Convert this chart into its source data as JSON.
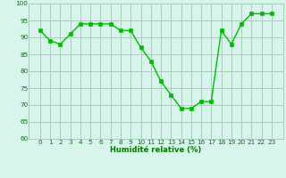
{
  "x": [
    0,
    1,
    2,
    3,
    4,
    5,
    6,
    7,
    8,
    9,
    10,
    11,
    12,
    13,
    14,
    15,
    16,
    17,
    18,
    19,
    20,
    21,
    22,
    23
  ],
  "y": [
    92,
    89,
    88,
    91,
    94,
    94,
    94,
    94,
    92,
    92,
    87,
    83,
    77,
    73,
    69,
    69,
    71,
    71,
    92,
    88,
    94,
    97,
    97,
    97
  ],
  "line_color": "#00bb00",
  "marker_color": "#00bb00",
  "bg_color": "#d8f5ec",
  "grid_color": "#aaccc0",
  "xlabel": "Humidité relative (%)",
  "ylim": [
    60,
    100
  ],
  "yticks": [
    60,
    65,
    70,
    75,
    80,
    85,
    90,
    95,
    100
  ],
  "xticks": [
    0,
    1,
    2,
    3,
    4,
    5,
    6,
    7,
    8,
    9,
    10,
    11,
    12,
    13,
    14,
    15,
    16,
    17,
    18,
    19,
    20,
    21,
    22,
    23
  ],
  "xlabel_color": "#007700",
  "tick_color": "#007700",
  "tick_fontsize": 5.2,
  "xlabel_fontsize": 6.0,
  "linewidth": 1.0,
  "markersize": 2.5
}
